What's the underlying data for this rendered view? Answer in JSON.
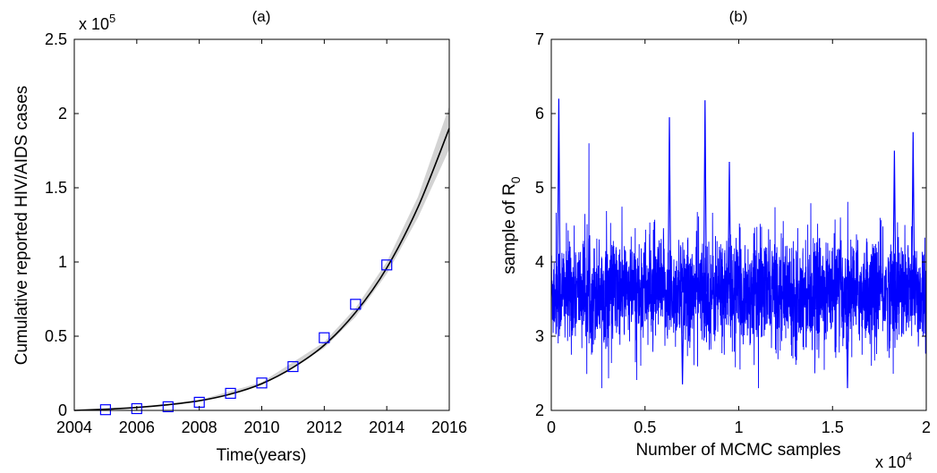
{
  "chart_data": [
    {
      "type": "line",
      "title": "(a)",
      "xlabel": "Time(years)",
      "ylabel": "Cumulative reported HIV/AIDS cases",
      "y_exponent_label": "x 10",
      "y_exponent_power": "5",
      "xlim": [
        2004,
        2016
      ],
      "ylim": [
        0,
        2.5
      ],
      "x_ticks": [
        2004,
        2006,
        2008,
        2010,
        2012,
        2014,
        2016
      ],
      "x_tick_labels": [
        "2004",
        "2006",
        "2008",
        "2010",
        "2012",
        "2014",
        "2016"
      ],
      "y_ticks": [
        0,
        0.5,
        1,
        1.5,
        2,
        2.5
      ],
      "y_tick_labels": [
        "0",
        "0.5",
        "1",
        "1.5",
        "2",
        "2.5"
      ],
      "grid": false,
      "series": [
        {
          "kind": "markers",
          "marker": "square",
          "color": "#0000ff",
          "x": [
            2005,
            2006,
            2007,
            2008,
            2009,
            2010,
            2011,
            2012,
            2013,
            2014
          ],
          "y": [
            0.005,
            0.012,
            0.025,
            0.055,
            0.115,
            0.185,
            0.295,
            0.49,
            0.715,
            0.98
          ]
        },
        {
          "kind": "line",
          "color": "#000000",
          "x": [
            2004,
            2005,
            2006,
            2007,
            2008,
            2009,
            2010,
            2011,
            2012,
            2013,
            2014,
            2015,
            2016
          ],
          "y": [
            0,
            0.008,
            0.02,
            0.038,
            0.065,
            0.11,
            0.18,
            0.29,
            0.44,
            0.66,
            0.96,
            1.37,
            1.9
          ]
        },
        {
          "kind": "band",
          "color": "#c8c8c8",
          "x": [
            2004,
            2006,
            2008,
            2010,
            2012,
            2013,
            2014,
            2015,
            2016
          ],
          "lower": [
            0,
            0.018,
            0.06,
            0.17,
            0.42,
            0.63,
            0.92,
            1.3,
            1.76
          ],
          "upper": [
            0,
            0.022,
            0.07,
            0.19,
            0.46,
            0.69,
            1.0,
            1.44,
            2.05
          ]
        }
      ]
    },
    {
      "type": "line",
      "title": "(b)",
      "xlabel": "Number of MCMC samples",
      "ylabel": "sample of R",
      "ylabel_sub": "0",
      "x_exponent_label": "x 10",
      "x_exponent_power": "4",
      "xlim": [
        0,
        2
      ],
      "ylim": [
        2,
        7
      ],
      "x_ticks": [
        0,
        0.5,
        1,
        1.5,
        2
      ],
      "x_tick_labels": [
        "0",
        "0.5",
        "1",
        "1.5",
        "2"
      ],
      "y_ticks": [
        2,
        3,
        4,
        5,
        6,
        7
      ],
      "y_tick_labels": [
        "2",
        "3",
        "4",
        "5",
        "6",
        "7"
      ],
      "grid": false,
      "series": [
        {
          "kind": "trace",
          "color": "#0000ff",
          "n_samples": 20000,
          "mean": 3.6,
          "std": 0.35,
          "min": 2.3,
          "max": 6.2,
          "spikes": [
            {
              "x": 0.04,
              "y": 6.2
            },
            {
              "x": 0.63,
              "y": 5.95
            },
            {
              "x": 0.82,
              "y": 6.18
            },
            {
              "x": 0.95,
              "y": 5.35
            },
            {
              "x": 1.83,
              "y": 5.5
            },
            {
              "x": 1.93,
              "y": 5.75
            },
            {
              "x": 0.7,
              "y": 2.35
            },
            {
              "x": 1.58,
              "y": 2.3
            }
          ]
        }
      ]
    }
  ]
}
